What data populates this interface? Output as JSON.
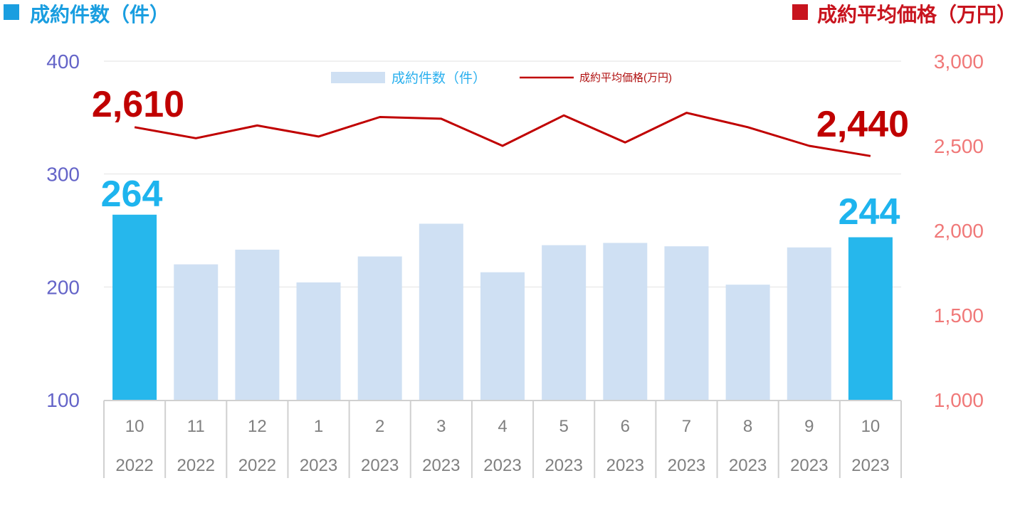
{
  "header": {
    "left_title": "成約件数（件）",
    "right_title": "成約平均価格（万円）",
    "left_color": "#1a9ee0",
    "right_color": "#c8141e"
  },
  "legend": {
    "bar_label": "成約件数（件）",
    "line_label": "成約平均価格(万円)"
  },
  "chart_data": {
    "type": "bar",
    "categories": [
      "10",
      "11",
      "12",
      "1",
      "2",
      "3",
      "4",
      "5",
      "6",
      "7",
      "8",
      "9",
      "10"
    ],
    "category_years": [
      "2022",
      "2022",
      "2022",
      "2023",
      "2023",
      "2023",
      "2023",
      "2023",
      "2023",
      "2023",
      "2023",
      "2023",
      "2023"
    ],
    "series": [
      {
        "name": "成約件数（件）",
        "type": "bar",
        "axis": "left",
        "values": [
          264,
          220,
          233,
          204,
          227,
          256,
          213,
          237,
          239,
          236,
          202,
          235,
          244
        ],
        "color": "#cfe0f3",
        "highlight_color": "#26b7ec",
        "highlight_indices": [
          0,
          12
        ]
      },
      {
        "name": "成約平均価格(万円)",
        "type": "line",
        "axis": "right",
        "values": [
          2610,
          2545,
          2620,
          2555,
          2670,
          2660,
          2500,
          2680,
          2520,
          2695,
          2610,
          2500,
          2440
        ],
        "color": "#c00000"
      }
    ],
    "left_axis": {
      "ticks": [
        "100",
        "200",
        "300",
        "400"
      ],
      "ylim": [
        100,
        400
      ]
    },
    "right_axis": {
      "ticks": [
        "1,000",
        "1,500",
        "2,000",
        "2,500",
        "3,000"
      ],
      "ylim": [
        1000,
        3000
      ]
    },
    "callouts": {
      "bar_first": "264",
      "bar_last": "244",
      "line_first": "2,610",
      "line_last": "2,440"
    },
    "grid": true,
    "legend_position": "top-center"
  }
}
